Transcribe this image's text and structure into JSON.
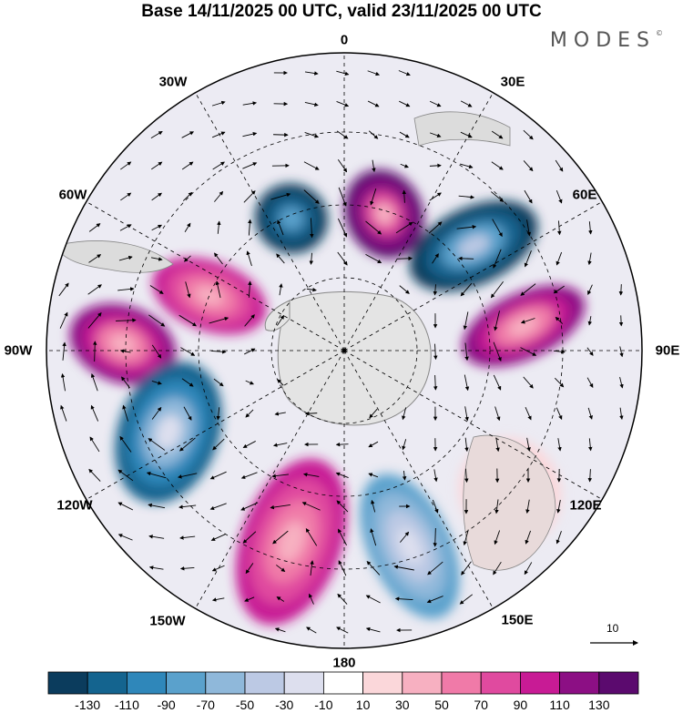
{
  "header": {
    "title": "Base 14/11/2025 00 UTC, valid 23/11/2025 00 UTC",
    "brand": "MODES",
    "brand_mark": "©"
  },
  "map": {
    "projection": "south-polar-stereographic",
    "longitude_labels": [
      "0",
      "30E",
      "60E",
      "90E",
      "120E",
      "150E",
      "180",
      "150W",
      "120W",
      "90W",
      "60W",
      "30W"
    ],
    "reference_vector": {
      "value": "10"
    },
    "colors": {
      "land": "#e4e4e4",
      "coast": "#888888",
      "grid": "#000000"
    }
  },
  "colorbar": {
    "ticks": [
      "-130",
      "-110",
      "-90",
      "-70",
      "-50",
      "-30",
      "-10",
      "10",
      "30",
      "50",
      "70",
      "90",
      "110",
      "130"
    ],
    "colors": [
      "#0b3c5d",
      "#14648f",
      "#2f87ba",
      "#5aa1cc",
      "#8fb8da",
      "#bcc9e4",
      "#dddfee",
      "#ffffff",
      "#fbd7da",
      "#f7b0c1",
      "#f07aa8",
      "#e04a9f",
      "#c81b95",
      "#8c0f84",
      "#5b0a6e"
    ]
  }
}
